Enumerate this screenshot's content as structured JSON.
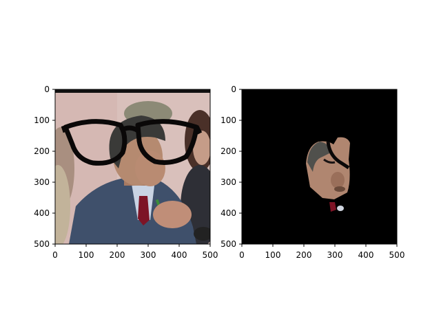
{
  "chart_data": [
    {
      "type": "image",
      "title": "",
      "xlabel": "",
      "ylabel": "",
      "xlim": [
        0,
        500
      ],
      "ylim": [
        500,
        0
      ],
      "x_ticks": [
        "0",
        "100",
        "200",
        "300",
        "400",
        "500"
      ],
      "y_ticks": [
        "0",
        "100",
        "200",
        "300",
        "400",
        "500"
      ],
      "y_inverted": true,
      "grid": false,
      "content": "photo of man in grey suit with drawn-on black glasses overlay"
    },
    {
      "type": "image",
      "title": "",
      "xlabel": "",
      "ylabel": "",
      "xlim": [
        0,
        500
      ],
      "ylim": [
        500,
        0
      ],
      "x_ticks": [
        "0",
        "100",
        "200",
        "300",
        "400",
        "500"
      ],
      "y_ticks": [
        "0",
        "100",
        "200",
        "300",
        "400",
        "500"
      ],
      "y_inverted": true,
      "grid": false,
      "content": "segmented face region on black background"
    }
  ],
  "colors": {
    "background": "#ffffff",
    "mask": "#000000",
    "glasses": "#0a0808",
    "suit": "#3e4f6a",
    "skin": "#b78a70",
    "hair": "#3f3f3c",
    "wall": "#d7bdb8",
    "tie": "#7d1426"
  }
}
